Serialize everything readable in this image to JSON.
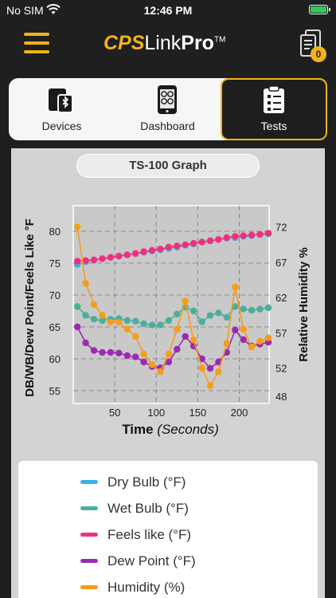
{
  "status_bar": {
    "carrier": "No SIM",
    "time": "12:46 PM"
  },
  "header": {
    "brand_cps": "CPS",
    "brand_link": "Link",
    "brand_pro": "Pro",
    "brand_tm": "TM",
    "badge_count": "0"
  },
  "tabs": [
    {
      "label": "Devices",
      "icon": "tablet-bluetooth-icon",
      "active": false
    },
    {
      "label": "Dashboard",
      "icon": "phone-gauges-icon",
      "active": false
    },
    {
      "label": "Tests",
      "icon": "clipboard-checklist-icon",
      "active": true
    }
  ],
  "graph": {
    "title": "TS-100 Graph"
  },
  "legend": [
    {
      "label": "Dry Bulb (°F)",
      "color": "#35b4e4"
    },
    {
      "label": "Wet Bulb (°F)",
      "color": "#4bae9c"
    },
    {
      "label": "Feels like (°F)",
      "color": "#f0307f"
    },
    {
      "label": "Dew Point (°F)",
      "color": "#9c2ab0"
    },
    {
      "label": "Humidity (%)",
      "color": "#f59d17"
    }
  ],
  "chart_data": {
    "type": "line",
    "xlabel": "Time",
    "xlabel_unit": "(Seconds)",
    "ylabel_left": "DB/WB/Dew Point/Feels Like  °F",
    "ylabel_right": "Relative Humidity %",
    "xlim": [
      0,
      236
    ],
    "ylim_left": [
      53,
      84
    ],
    "ylim_right": [
      47,
      75
    ],
    "x_ticks": [
      50,
      100,
      150,
      200
    ],
    "y_ticks_left": [
      55,
      60,
      65,
      70,
      75,
      80
    ],
    "y_ticks_right": [
      48,
      52,
      57,
      62,
      67,
      72
    ],
    "grid": true,
    "x": [
      5,
      15,
      25,
      35,
      45,
      55,
      65,
      75,
      85,
      95,
      105,
      115,
      125,
      135,
      145,
      155,
      165,
      175,
      185,
      195,
      205,
      215,
      225,
      235
    ],
    "series": [
      {
        "name": "Dry Bulb (°F)",
        "color": "#35b4e4",
        "axis": "left",
        "values": [
          74.8,
          75.2,
          75.5,
          75.7,
          75.9,
          76.1,
          76.3,
          76.5,
          76.7,
          76.9,
          77.1,
          77.3,
          77.5,
          77.8,
          78.0,
          78.3,
          78.5,
          78.7,
          78.9,
          79.0,
          79.2,
          79.3,
          79.5,
          79.6
        ]
      },
      {
        "name": "Wet Bulb (°F)",
        "color": "#4bae9c",
        "axis": "left",
        "values": [
          68.2,
          66.8,
          66.2,
          66.0,
          66.2,
          66.3,
          66.0,
          65.9,
          65.5,
          65.3,
          65.3,
          66.0,
          67.0,
          68.1,
          67.5,
          65.8,
          66.8,
          67.2,
          66.5,
          68.2,
          67.8,
          67.6,
          67.8,
          68.0
        ]
      },
      {
        "name": "Feels like (°F)",
        "color": "#f0307f",
        "axis": "left",
        "values": [
          75.3,
          75.4,
          75.5,
          75.7,
          75.9,
          76.1,
          76.3,
          76.5,
          76.8,
          77.0,
          77.2,
          77.5,
          77.7,
          77.9,
          78.1,
          78.3,
          78.5,
          78.7,
          79.0,
          79.2,
          79.3,
          79.4,
          79.5,
          79.7
        ]
      },
      {
        "name": "Dew Point (°F)",
        "color": "#9c2ab0",
        "axis": "left",
        "values": [
          65.0,
          62.5,
          61.3,
          61.0,
          61.0,
          60.9,
          60.5,
          60.3,
          59.5,
          58.8,
          58.6,
          59.5,
          61.5,
          63.5,
          62.0,
          60.0,
          58.5,
          59.5,
          61.0,
          64.5,
          63.0,
          62.0,
          62.3,
          62.6
        ]
      },
      {
        "name": "Humidity (%)",
        "color": "#f59d17",
        "axis": "right",
        "values": [
          72.0,
          64.0,
          61.0,
          59.5,
          58.5,
          58.5,
          57.5,
          56.5,
          54.0,
          52.5,
          51.5,
          54.0,
          57.5,
          61.5,
          56.0,
          52.0,
          49.5,
          51.5,
          55.5,
          63.5,
          57.5,
          55.0,
          55.8,
          56.3
        ]
      }
    ]
  }
}
